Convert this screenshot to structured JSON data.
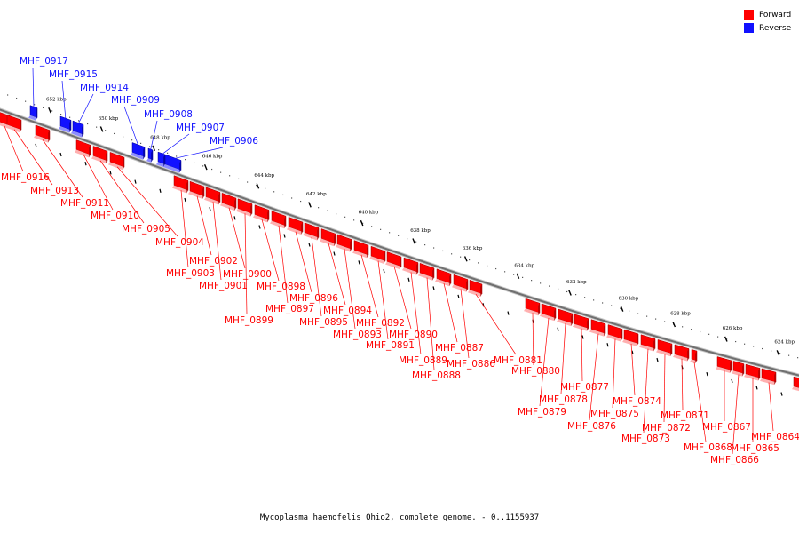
{
  "legend": {
    "forward_label": "Forward",
    "reverse_label": "Reverse",
    "forward_color": "#ff0000",
    "reverse_color": "#1111ff"
  },
  "caption": "Mycoplasma haemofelis Ohio2, complete genome. - 0..1155937",
  "ticks": [
    {
      "label": "652 kbp",
      "kbp": 652
    },
    {
      "label": "650 kbp",
      "kbp": 650
    },
    {
      "label": "648 kbp",
      "kbp": 648
    },
    {
      "label": "646 kbp",
      "kbp": 646
    },
    {
      "label": "644 kbp",
      "kbp": 644
    },
    {
      "label": "642 kbp",
      "kbp": 642
    },
    {
      "label": "640 kbp",
      "kbp": 640
    },
    {
      "label": "638 kbp",
      "kbp": 638
    },
    {
      "label": "636 kbp",
      "kbp": 636
    },
    {
      "label": "634 kbp",
      "kbp": 634
    },
    {
      "label": "632 kbp",
      "kbp": 632
    },
    {
      "label": "630 kbp",
      "kbp": 630
    },
    {
      "label": "628 kbp",
      "kbp": 628
    },
    {
      "label": "626 kbp",
      "kbp": 626
    },
    {
      "label": "624 kbp",
      "kbp": 624
    }
  ],
  "reverse_genes": [
    {
      "name": "MHF_0917"
    },
    {
      "name": "MHF_0915"
    },
    {
      "name": "MHF_0914"
    },
    {
      "name": "MHF_0909"
    },
    {
      "name": "MHF_0908"
    },
    {
      "name": "MHF_0907"
    },
    {
      "name": "MHF_0906"
    }
  ],
  "forward_genes": [
    {
      "name": "MHF_0916"
    },
    {
      "name": "MHF_0913"
    },
    {
      "name": "MHF_0911"
    },
    {
      "name": "MHF_0910"
    },
    {
      "name": "MHF_0905"
    },
    {
      "name": "MHF_0904"
    },
    {
      "name": "MHF_0903"
    },
    {
      "name": "MHF_0902"
    },
    {
      "name": "MHF_0901"
    },
    {
      "name": "MHF_0900"
    },
    {
      "name": "MHF_0899"
    },
    {
      "name": "MHF_0898"
    },
    {
      "name": "MHF_0897"
    },
    {
      "name": "MHF_0896"
    },
    {
      "name": "MHF_0895"
    },
    {
      "name": "MHF_0894"
    },
    {
      "name": "MHF_0893"
    },
    {
      "name": "MHF_0892"
    },
    {
      "name": "MHF_0891"
    },
    {
      "name": "MHF_0890"
    },
    {
      "name": "MHF_0889"
    },
    {
      "name": "MHF_0888"
    },
    {
      "name": "MHF_0887"
    },
    {
      "name": "MHF_0886"
    },
    {
      "name": "MHF_0881"
    },
    {
      "name": "MHF_0880"
    },
    {
      "name": "MHF_0879"
    },
    {
      "name": "MHF_0878"
    },
    {
      "name": "MHF_0877"
    },
    {
      "name": "MHF_0876"
    },
    {
      "name": "MHF_0875"
    },
    {
      "name": "MHF_0874"
    },
    {
      "name": "MHF_0873"
    },
    {
      "name": "MHF_0872"
    },
    {
      "name": "MHF_0871"
    },
    {
      "name": "MHF_0868"
    },
    {
      "name": "MHF_0867"
    },
    {
      "name": "MHF_0866"
    },
    {
      "name": "MHF_0865"
    },
    {
      "name": "MHF_0864"
    }
  ]
}
